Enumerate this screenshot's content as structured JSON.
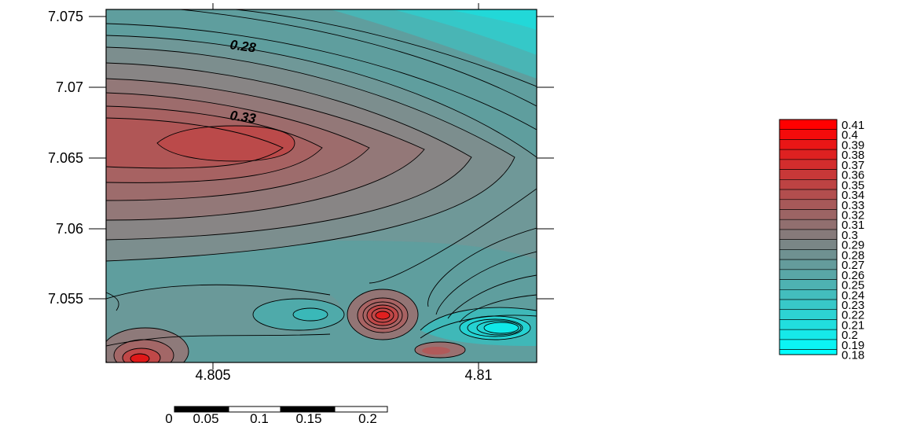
{
  "map": {
    "x_ticks": [
      "4.805",
      "4.81"
    ],
    "y_ticks": [
      "7.075",
      "7.07",
      "7.065",
      "7.06",
      "7.055"
    ],
    "contour_labels": [
      "0.28",
      "0.33"
    ]
  },
  "legend": {
    "values": [
      "0.41",
      "0.4",
      "0.39",
      "0.38",
      "0.37",
      "0.36",
      "0.35",
      "0.34",
      "0.33",
      "0.32",
      "0.31",
      "0.3",
      "0.29",
      "0.28",
      "0.27",
      "0.26",
      "0.25",
      "0.24",
      "0.23",
      "0.22",
      "0.21",
      "0.2",
      "0.19",
      "0.18"
    ],
    "colors": {
      "max": "#ff0000",
      "mid": "#808080",
      "min": "#00ffff"
    }
  },
  "scale_bar": {
    "labels": [
      "0",
      "0.05",
      "0.1",
      "0.15",
      "0.2"
    ]
  }
}
